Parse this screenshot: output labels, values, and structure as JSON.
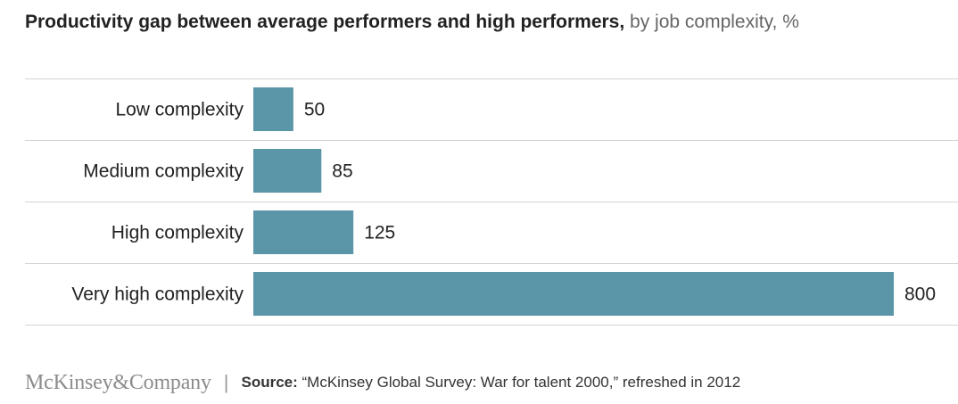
{
  "title": {
    "bold": "Productivity gap between average performers and high performers,",
    "light": "by job complexity, %"
  },
  "chart_data": {
    "type": "bar",
    "orientation": "horizontal",
    "categories": [
      "Low complexity",
      "Medium complexity",
      "High complexity",
      "Very high complexity"
    ],
    "values": [
      50,
      85,
      125,
      800
    ],
    "value_labels": [
      "50",
      "85",
      "125",
      "800"
    ],
    "xlim": [
      0,
      800
    ],
    "grid": false,
    "bar_color": "#5b95a8"
  },
  "footer": {
    "logo": "McKinsey&Company",
    "separator": "|",
    "source_label": "Source:",
    "source_text": " “McKinsey Global Survey: War for talent 2000,” refreshed in 2012"
  },
  "colors": {
    "bar": "#5b95a8",
    "rule": "#d4d4d4",
    "text": "#222222"
  }
}
